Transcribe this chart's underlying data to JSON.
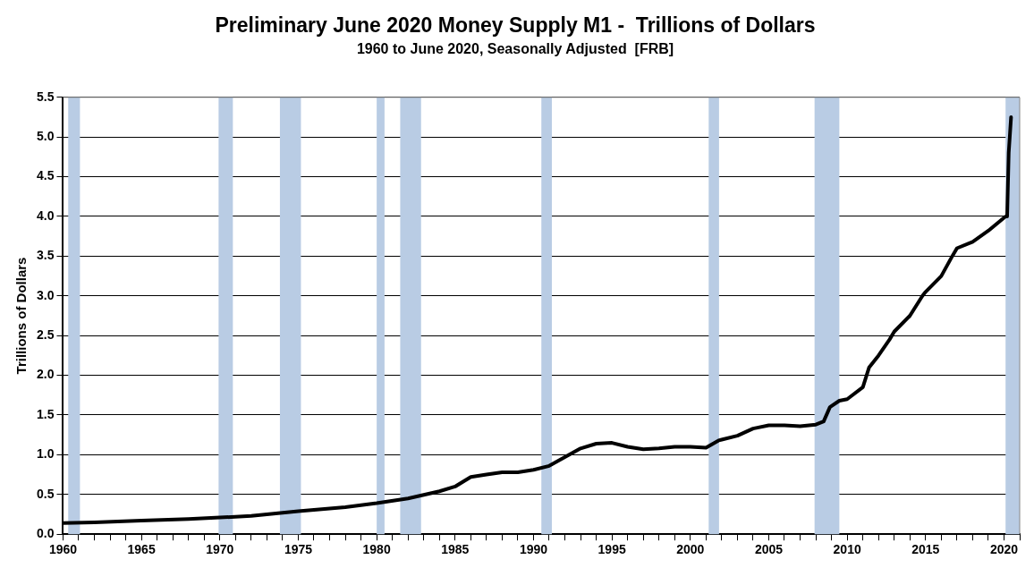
{
  "chart_data": {
    "type": "line",
    "title": "Preliminary June 2020 Money Supply M1 -  Trillions of Dollars",
    "subtitle": "1960 to June 2020, Seasonally Adjusted  [FRB]",
    "ylabel": "Trillions of Dollars",
    "series": [
      {
        "color": "#000000",
        "x": [
          1960,
          1962,
          1965,
          1968,
          1970,
          1972,
          1975,
          1978,
          1980,
          1982,
          1984,
          1985,
          1986,
          1987,
          1988,
          1989,
          1990,
          1991,
          1992,
          1993,
          1994,
          1995,
          1996,
          1997,
          1998,
          1999,
          2000,
          2001,
          2001.8,
          2002,
          2003,
          2004,
          2005,
          2006,
          2007,
          2008,
          2008.5,
          2008.9,
          2009.5,
          2010,
          2011,
          2011.4,
          2012,
          2012.7,
          2013,
          2014,
          2014.8,
          2015,
          2016,
          2016.7,
          2017,
          2018,
          2019,
          2020.1,
          2020.2,
          2020.3,
          2020.45
        ],
        "values": [
          0.14,
          0.15,
          0.17,
          0.19,
          0.21,
          0.23,
          0.29,
          0.34,
          0.39,
          0.45,
          0.54,
          0.6,
          0.72,
          0.75,
          0.78,
          0.78,
          0.81,
          0.86,
          0.97,
          1.08,
          1.14,
          1.15,
          1.1,
          1.07,
          1.08,
          1.1,
          1.1,
          1.09,
          1.18,
          1.19,
          1.24,
          1.33,
          1.37,
          1.37,
          1.36,
          1.38,
          1.42,
          1.6,
          1.68,
          1.7,
          1.85,
          2.1,
          2.25,
          2.45,
          2.55,
          2.75,
          3.0,
          3.05,
          3.25,
          3.5,
          3.6,
          3.68,
          3.82,
          4.0,
          4.0,
          4.8,
          5.25
        ]
      }
    ],
    "xlim": [
      1960,
      2021
    ],
    "xticks": [
      1960,
      {
        "value": 1961,
        "label": null
      },
      {
        "value": 1962,
        "label": null
      },
      {
        "value": 1963,
        "label": null
      },
      {
        "value": 1964,
        "label": null
      },
      1965,
      {
        "value": 1966,
        "label": null
      },
      {
        "value": 1967,
        "label": null
      },
      {
        "value": 1968,
        "label": null
      },
      {
        "value": 1969,
        "label": null
      },
      1970,
      {
        "value": 1971,
        "label": null
      },
      {
        "value": 1972,
        "label": null
      },
      {
        "value": 1973,
        "label": null
      },
      {
        "value": 1974,
        "label": null
      },
      1975,
      {
        "value": 1976,
        "label": null
      },
      {
        "value": 1977,
        "label": null
      },
      {
        "value": 1978,
        "label": null
      },
      {
        "value": 1979,
        "label": null
      },
      1980,
      {
        "value": 1981,
        "label": null
      },
      {
        "value": 1982,
        "label": null
      },
      {
        "value": 1983,
        "label": null
      },
      {
        "value": 1984,
        "label": null
      },
      1985,
      {
        "value": 1986,
        "label": null
      },
      {
        "value": 1987,
        "label": null
      },
      {
        "value": 1988,
        "label": null
      },
      {
        "value": 1989,
        "label": null
      },
      1990,
      {
        "value": 1991,
        "label": null
      },
      {
        "value": 1992,
        "label": null
      },
      {
        "value": 1993,
        "label": null
      },
      {
        "value": 1994,
        "label": null
      },
      1995,
      {
        "value": 1996,
        "label": null
      },
      {
        "value": 1997,
        "label": null
      },
      {
        "value": 1998,
        "label": null
      },
      {
        "value": 1999,
        "label": null
      },
      2000,
      {
        "value": 2001,
        "label": null
      },
      {
        "value": 2002,
        "label": null
      },
      {
        "value": 2003,
        "label": null
      },
      {
        "value": 2004,
        "label": null
      },
      2005,
      {
        "value": 2006,
        "label": null
      },
      {
        "value": 2007,
        "label": null
      },
      {
        "value": 2008,
        "label": null
      },
      {
        "value": 2009,
        "label": null
      },
      2010,
      {
        "value": 2011,
        "label": null
      },
      {
        "value": 2012,
        "label": null
      },
      {
        "value": 2013,
        "label": null
      },
      {
        "value": 2014,
        "label": null
      },
      2015,
      {
        "value": 2016,
        "label": null
      },
      {
        "value": 2017,
        "label": null
      },
      {
        "value": 2018,
        "label": null
      },
      {
        "value": 2019,
        "label": null
      },
      2020,
      {
        "value": 2021,
        "label": null
      }
    ],
    "ylim": [
      0,
      5.5
    ],
    "yticks": [
      {
        "value": 0,
        "label": "0.0"
      },
      {
        "value": 0.5,
        "label": "0.5"
      },
      {
        "value": 1,
        "label": "1.0"
      },
      {
        "value": 1.5,
        "label": "1.5"
      },
      {
        "value": 2,
        "label": "2.0"
      },
      {
        "value": 2.5,
        "label": "2.5"
      },
      {
        "value": 3,
        "label": "3.0"
      },
      {
        "value": 3.5,
        "label": "3.5"
      },
      {
        "value": 4,
        "label": "4.0"
      },
      {
        "value": 4.5,
        "label": "4.5"
      },
      {
        "value": 5,
        "label": "5.0"
      },
      {
        "value": 5.5,
        "label": "5.5"
      }
    ],
    "grid": "y",
    "legend": false,
    "marker": "none",
    "line_style": "solid",
    "bands": [
      {
        "axis": "x",
        "from": 1960.33,
        "to": 1961.08,
        "color": "#b9cce4"
      },
      {
        "axis": "x",
        "from": 1969.92,
        "to": 1970.83,
        "color": "#b9cce4"
      },
      {
        "axis": "x",
        "from": 1973.83,
        "to": 1975.17,
        "color": "#b9cce4"
      },
      {
        "axis": "x",
        "from": 1980,
        "to": 1980.5,
        "color": "#b9cce4"
      },
      {
        "axis": "x",
        "from": 1981.5,
        "to": 1982.83,
        "color": "#b9cce4"
      },
      {
        "axis": "x",
        "from": 1990.5,
        "to": 1991.17,
        "color": "#b9cce4"
      },
      {
        "axis": "x",
        "from": 2001.17,
        "to": 2001.83,
        "color": "#b9cce4"
      },
      {
        "axis": "x",
        "from": 2007.92,
        "to": 2009.5,
        "color": "#b9cce4"
      },
      {
        "axis": "x",
        "from": 2020.1,
        "to": 2021,
        "color": "#b9cce4"
      }
    ]
  }
}
